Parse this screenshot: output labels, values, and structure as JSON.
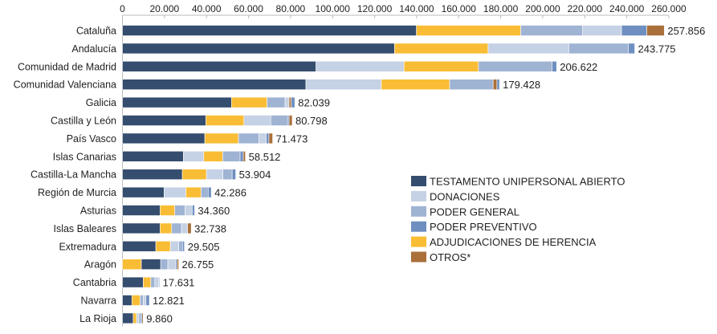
{
  "chart_data": {
    "type": "bar",
    "orientation": "horizontal",
    "stacked": true,
    "title": "",
    "xlabel": "",
    "ylabel": "",
    "xlim": [
      0,
      260000
    ],
    "x_ticks": [
      "0",
      "20.000",
      "40.000",
      "60.000",
      "80.000",
      "100.000",
      "120.000",
      "140.000",
      "160.000",
      "180.000",
      "200.000",
      "220.000",
      "240.000",
      "260.000"
    ],
    "legend_position": "right-center",
    "series": [
      {
        "key": "testamento",
        "name": "TESTAMENTO UNIPERSONAL ABIERTO",
        "color": "#354d6e"
      },
      {
        "key": "donaciones",
        "name": "DONACIONES",
        "color": "#c5d1e4"
      },
      {
        "key": "general",
        "name": "PODER GENERAL",
        "color": "#9fb3d3"
      },
      {
        "key": "preventivo",
        "name": "PODER PREVENTIVO",
        "color": "#6f8fc0"
      },
      {
        "key": "adjudicaciones",
        "name": "ADJUDICACIONES DE HERENCIA",
        "color": "#f9bd35"
      },
      {
        "key": "otros",
        "name": "OTROS*",
        "color": "#a9703a"
      }
    ],
    "rows": [
      {
        "category": "Cataluña",
        "total_label": "257.856",
        "segments": [
          [
            "testamento",
            139900
          ],
          [
            "adjudicaciones",
            49600
          ],
          [
            "general",
            29500
          ],
          [
            "donaciones",
            18500
          ],
          [
            "preventivo",
            12000
          ],
          [
            "otros",
            8356
          ]
        ]
      },
      {
        "category": "Andalucía",
        "total_label": "243.775",
        "segments": [
          [
            "testamento",
            129500
          ],
          [
            "adjudicaciones",
            44500
          ],
          [
            "donaciones",
            38400
          ],
          [
            "general",
            28400
          ],
          [
            "preventivo",
            2975
          ]
        ]
      },
      {
        "category": "Comunidad de Madrid",
        "total_label": "206.622",
        "segments": [
          [
            "testamento",
            92100
          ],
          [
            "donaciones",
            41900
          ],
          [
            "adjudicaciones",
            35400
          ],
          [
            "general",
            35000
          ],
          [
            "preventivo",
            2222
          ]
        ]
      },
      {
        "category": "Comunidad Valenciana",
        "total_label": "179.428",
        "segments": [
          [
            "testamento",
            87300
          ],
          [
            "donaciones",
            35900
          ],
          [
            "adjudicaciones",
            32500
          ],
          [
            "general",
            20700
          ],
          [
            "otros",
            1800
          ],
          [
            "preventivo",
            1228
          ]
        ]
      },
      {
        "category": "Galicia",
        "total_label": "82.039",
        "segments": [
          [
            "testamento",
            51900
          ],
          [
            "adjudicaciones",
            16900
          ],
          [
            "general",
            8600
          ],
          [
            "donaciones",
            1900
          ],
          [
            "otros",
            1000
          ],
          [
            "preventivo",
            1739
          ]
        ]
      },
      {
        "category": "Castilla y León",
        "total_label": "80.798",
        "segments": [
          [
            "testamento",
            39700
          ],
          [
            "adjudicaciones",
            18100
          ],
          [
            "donaciones",
            12800
          ],
          [
            "general",
            8000
          ],
          [
            "preventivo",
            700
          ],
          [
            "otros",
            1498
          ]
        ]
      },
      {
        "category": "País Vasco",
        "total_label": "71.473",
        "segments": [
          [
            "testamento",
            39200
          ],
          [
            "adjudicaciones",
            16000
          ],
          [
            "general",
            9800
          ],
          [
            "donaciones",
            3400
          ],
          [
            "preventivo",
            1300
          ],
          [
            "otros",
            1773
          ]
        ]
      },
      {
        "category": "Islas Canarias",
        "total_label": "58.512",
        "segments": [
          [
            "testamento",
            29000
          ],
          [
            "donaciones",
            9700
          ],
          [
            "adjudicaciones",
            9000
          ],
          [
            "general",
            8300
          ],
          [
            "preventivo",
            1512
          ],
          [
            "otros",
            1000
          ]
        ]
      },
      {
        "category": "Castilla-La Mancha",
        "total_label": "53.904",
        "segments": [
          [
            "testamento",
            28500
          ],
          [
            "adjudicaciones",
            11500
          ],
          [
            "donaciones",
            7800
          ],
          [
            "general",
            4400
          ],
          [
            "preventivo",
            1704
          ]
        ]
      },
      {
        "category": "Región de Murcia",
        "total_label": "42.286",
        "segments": [
          [
            "testamento",
            19800
          ],
          [
            "donaciones",
            10400
          ],
          [
            "adjudicaciones",
            7200
          ],
          [
            "general",
            3400
          ],
          [
            "preventivo",
            1486
          ]
        ]
      },
      {
        "category": "Asturias",
        "total_label": "34.360",
        "segments": [
          [
            "testamento",
            17900
          ],
          [
            "adjudicaciones",
            7000
          ],
          [
            "general",
            4900
          ],
          [
            "donaciones",
            3400
          ],
          [
            "preventivo",
            1160
          ]
        ]
      },
      {
        "category": "Islas Baleares",
        "total_label": "32.738",
        "segments": [
          [
            "testamento",
            17900
          ],
          [
            "adjudicaciones",
            5500
          ],
          [
            "general",
            4700
          ],
          [
            "donaciones",
            2900
          ],
          [
            "otros",
            1738
          ]
        ]
      },
      {
        "category": "Extremadura",
        "total_label": "29.505",
        "segments": [
          [
            "testamento",
            15900
          ],
          [
            "adjudicaciones",
            6900
          ],
          [
            "donaciones",
            4000
          ],
          [
            "general",
            1800
          ],
          [
            "preventivo",
            905
          ]
        ]
      },
      {
        "category": "Aragón",
        "total_label": "26.755",
        "segments": [
          [
            "adjudicaciones",
            9000
          ],
          [
            "testamento",
            9200
          ],
          [
            "general",
            3400
          ],
          [
            "donaciones",
            3700
          ],
          [
            "preventivo",
            700
          ],
          [
            "otros",
            755
          ]
        ]
      },
      {
        "category": "Cantabria",
        "total_label": "17.631",
        "segments": [
          [
            "testamento",
            9900
          ],
          [
            "adjudicaciones",
            3600
          ],
          [
            "general",
            1900
          ],
          [
            "donaciones",
            1800
          ],
          [
            "preventivo",
            431
          ]
        ]
      },
      {
        "category": "Navarra",
        "total_label": "12.821",
        "segments": [
          [
            "testamento",
            4500
          ],
          [
            "adjudicaciones",
            3900
          ],
          [
            "general",
            1500
          ],
          [
            "donaciones",
            1300
          ],
          [
            "preventivo",
            1621
          ]
        ]
      },
      {
        "category": "La Rioja",
        "total_label": "9.860",
        "segments": [
          [
            "testamento",
            5100
          ],
          [
            "adjudicaciones",
            1600
          ],
          [
            "donaciones",
            1100
          ],
          [
            "general",
            900
          ],
          [
            "preventivo",
            600
          ],
          [
            "otros",
            560
          ]
        ]
      }
    ]
  }
}
